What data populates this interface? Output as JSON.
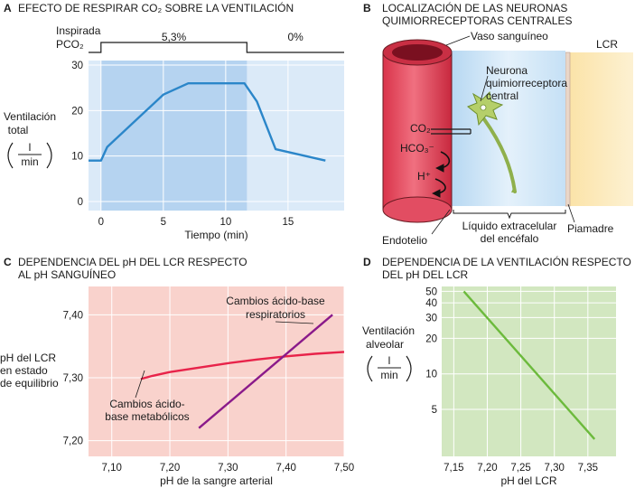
{
  "panel_a": {
    "letter": "A",
    "title": "EFECTO DE RESPIRAR CO₂ SOBRE LA VENTILACIÓN",
    "inspired_label_1": "Inspirada",
    "inspired_label_2": "PCO₂",
    "ylabel_1": "Ventilación",
    "ylabel_2": "total",
    "unit_num": "l",
    "unit_den": "min",
    "phase_labels": [
      "5,3%",
      "0%"
    ],
    "chart_data": {
      "type": "line",
      "x": [
        -1,
        0,
        0.5,
        5,
        7,
        11.5,
        12.5,
        14,
        18
      ],
      "y": [
        9,
        9,
        12,
        23.5,
        26,
        26,
        22,
        11.5,
        9
      ],
      "xlabel": "Tiempo (min)",
      "xlim": [
        -1,
        19.5
      ],
      "ylim": [
        -2,
        31
      ],
      "xticks": [
        0,
        5,
        10,
        15
      ],
      "yticks": [
        0,
        10,
        20,
        30
      ],
      "shaded_interval": [
        0,
        11.7
      ],
      "grid": true,
      "color": "#2b86c9"
    }
  },
  "panel_b": {
    "letter": "B",
    "title_1": "LOCALIZACIÓN DE LAS NEURONAS",
    "title_2": "QUIMIORRECEPTORAS CENTRALES",
    "vessel_label": "Vaso sanguíneo",
    "csf_label": "LCR",
    "neuron_label_1": "Neurona",
    "neuron_label_2": "quimiorreceptora",
    "neuron_label_3": "central",
    "co2_label": "CO₂",
    "hco3_label": "HCO₃⁻",
    "h_label": "H⁺",
    "ecf_label_1": "Líquido extracelular",
    "ecf_label_2": "del encéfalo",
    "endothelium_label": "Endotelio",
    "piamater_label": "Piamadre"
  },
  "panel_c": {
    "letter": "C",
    "title_1": "DEPENDENCIA DEL pH DEL LCR RESPECTO",
    "title_2": "AL pH SANGUÍNEO",
    "ylabel_1": "pH del LCR",
    "ylabel_2": "en estado",
    "ylabel_3": "de equilibrio",
    "annotation_resp_1": "Cambios ácido-base",
    "annotation_resp_2": "respiratorios",
    "annotation_met_1": "Cambios ácido-",
    "annotation_met_2": "base metabólicos",
    "chart_data": {
      "type": "line",
      "xlabel": "pH de la sangre arterial",
      "xlim": [
        7.06,
        7.5
      ],
      "ylim": [
        7.175,
        7.445
      ],
      "xticks": [
        7.1,
        7.2,
        7.3,
        7.4,
        7.5
      ],
      "xtick_labels": [
        "7,10",
        "7,20",
        "7,30",
        "7,40",
        "7,50"
      ],
      "yticks": [
        7.2,
        7.3,
        7.4
      ],
      "ytick_labels": [
        "7,20",
        "7,30",
        "7,40"
      ],
      "grid": true,
      "series": [
        {
          "x": [
            7.15,
            7.17,
            7.2,
            7.25,
            7.3,
            7.35,
            7.4,
            7.45,
            7.5
          ],
          "y": [
            7.298,
            7.303,
            7.309,
            7.316,
            7.323,
            7.329,
            7.334,
            7.338,
            7.341
          ],
          "color": "#e8234a"
        },
        {
          "x": [
            7.25,
            7.48
          ],
          "y": [
            7.22,
            7.4
          ],
          "color": "#8a1a8a"
        }
      ]
    }
  },
  "panel_d": {
    "letter": "D",
    "title_1": "DEPENDENCIA DE LA VENTILACIÓN RESPECTO",
    "title_2": "DEL pH DEL LCR",
    "ylabel_1": "Ventilación",
    "ylabel_2": "alveolar",
    "unit_num": "l",
    "unit_den": "min",
    "chart_data": {
      "type": "line",
      "xlabel": "pH del LCR",
      "xlim": [
        7.132,
        7.392
      ],
      "ylim": [
        2,
        55
      ],
      "log_y": true,
      "xticks": [
        7.15,
        7.2,
        7.25,
        7.3,
        7.35
      ],
      "xtick_labels": [
        "7,15",
        "7,20",
        "7,25",
        "7,30",
        "7,35"
      ],
      "yticks": [
        5,
        10,
        20,
        30,
        40,
        50
      ],
      "ytick_labels": [
        "5",
        "10",
        "20",
        "30",
        "40",
        "50"
      ],
      "grid": true,
      "x": [
        7.165,
        7.36
      ],
      "y": [
        50,
        2.8
      ],
      "color": "#6cba3c"
    }
  }
}
